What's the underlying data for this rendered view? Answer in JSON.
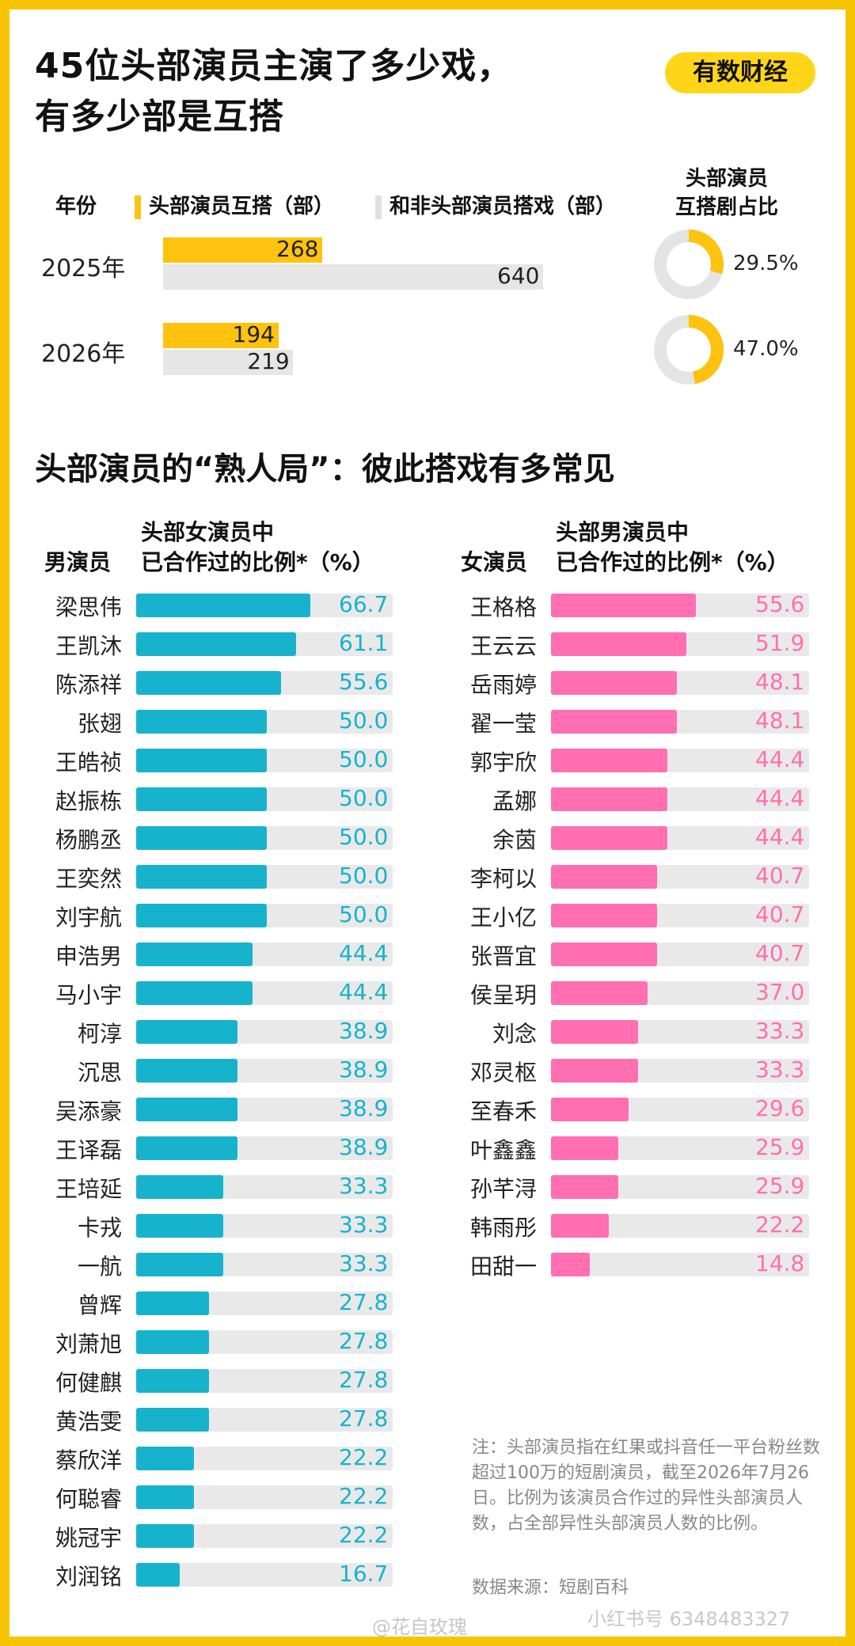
{
  "title_line1": "45位头部演员主演了多少戏，",
  "title_line2": "有多少部是互搭",
  "brand": "有数财经",
  "top": {
    "year_label": "年份",
    "legend_mutual": "头部演员互搭（部）",
    "legend_other": "和非头部演员搭戏（部）",
    "ratio_label_1": "头部演员",
    "ratio_label_2": "互搭剧占比",
    "colors": {
      "mutual": "#ffc20e",
      "other": "#e6e6e6",
      "donut_track": "#e4e4e4"
    }
  },
  "section2_title": "头部演员的“熟人局”：彼此搭戏有多常见",
  "male_header": {
    "name_col": "男演员",
    "line1": "头部女演员中",
    "line2": "已合作过的比例*（%）"
  },
  "female_header": {
    "name_col": "女演员",
    "line1": "头部男演员中",
    "line2": "已合作过的比例*（%）"
  },
  "colors": {
    "male": "#17b3cc",
    "female": "#ff6fb1"
  },
  "note": "注：头部演员指在红果或抖音任一平台粉丝数超过100万的短剧演员，截至2026年7月26日。比例为该演员合作过的异性头部演员人数，占全部异性头部演员人数的比例。",
  "source": "数据来源：短剧百科",
  "watermarks": {
    "weibo": "@花自玫瑰",
    "xhs": "小红书号 6348483327"
  },
  "chart_data": [
    {
      "type": "bar",
      "categories": [
        "2025年",
        "2026年"
      ],
      "series": [
        {
          "name": "头部演员互搭（部）",
          "values": [
            268,
            194
          ]
        },
        {
          "name": "和非头部演员搭戏（部）",
          "values": [
            640,
            219
          ]
        }
      ],
      "ratio_series": {
        "name": "头部演员互搭剧占比",
        "values": [
          29.5,
          47.0
        ],
        "labels": [
          "29.5%",
          "47.0%"
        ]
      }
    },
    {
      "type": "bar",
      "orientation": "horizontal",
      "xlim": [
        0,
        100
      ],
      "categories": [
        "梁思伟",
        "王凯沐",
        "陈添祥",
        "张翅",
        "王皓祯",
        "赵振栋",
        "杨鹏丞",
        "王奕然",
        "刘宇航",
        "申浩男",
        "马小宇",
        "柯淳",
        "沉思",
        "吴添豪",
        "王译磊",
        "王培延",
        "卡戎",
        "一航",
        "曾辉",
        "刘萧旭",
        "何健麒",
        "黄浩雯",
        "蔡欣洋",
        "何聪睿",
        "姚冠宇",
        "刘润铭"
      ],
      "values": [
        66.7,
        61.1,
        55.6,
        50.0,
        50.0,
        50.0,
        50.0,
        50.0,
        50.0,
        44.4,
        44.4,
        38.9,
        38.9,
        38.9,
        38.9,
        33.3,
        33.3,
        33.3,
        27.8,
        27.8,
        27.8,
        27.8,
        22.2,
        22.2,
        22.2,
        16.7
      ],
      "labels": [
        "66.7",
        "61.1",
        "55.6",
        "50.0",
        "50.0",
        "50.0",
        "50.0",
        "50.0",
        "50.0",
        "44.4",
        "44.4",
        "38.9",
        "38.9",
        "38.9",
        "38.9",
        "33.3",
        "33.3",
        "33.3",
        "27.8",
        "27.8",
        "27.8",
        "27.8",
        "22.2",
        "22.2",
        "22.2",
        "16.7"
      ]
    },
    {
      "type": "bar",
      "orientation": "horizontal",
      "xlim": [
        0,
        100
      ],
      "categories": [
        "王格格",
        "王云云",
        "岳雨婷",
        "翟一莹",
        "郭宇欣",
        "孟娜",
        "余茵",
        "李柯以",
        "王小亿",
        "张晋宜",
        "侯呈玥",
        "刘念",
        "邓灵枢",
        "至春禾",
        "叶鑫鑫",
        "孙芊浔",
        "韩雨彤",
        "田甜一"
      ],
      "values": [
        55.6,
        51.9,
        48.1,
        48.1,
        44.4,
        44.4,
        44.4,
        40.7,
        40.7,
        40.7,
        37.0,
        33.3,
        33.3,
        29.6,
        25.9,
        25.9,
        22.2,
        14.8
      ],
      "labels": [
        "55.6",
        "51.9",
        "48.1",
        "48.1",
        "44.4",
        "44.4",
        "44.4",
        "40.7",
        "40.7",
        "40.7",
        "37.0",
        "33.3",
        "33.3",
        "29.6",
        "25.9",
        "25.9",
        "22.2",
        "14.8"
      ]
    }
  ]
}
